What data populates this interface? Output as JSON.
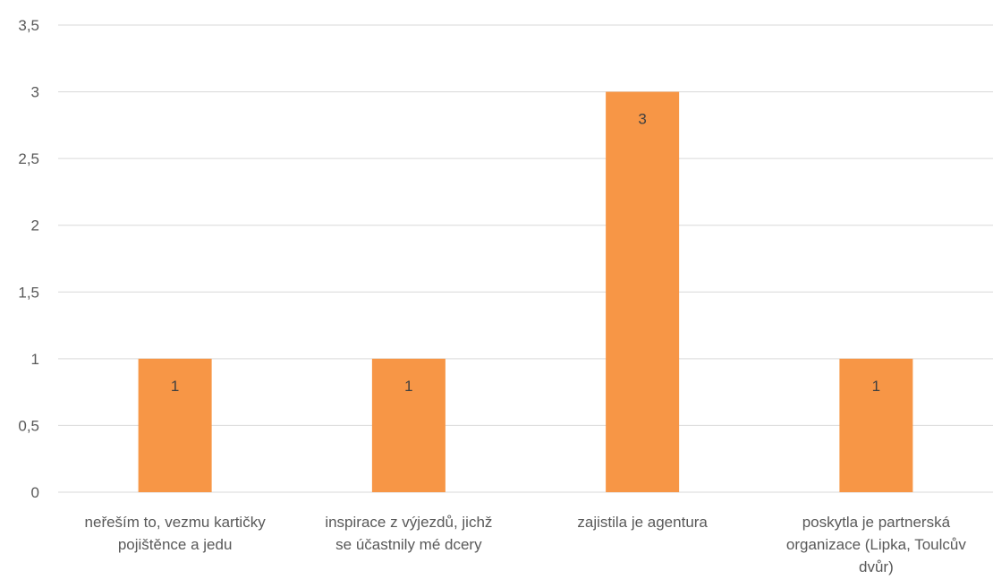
{
  "chart_data": {
    "type": "bar",
    "categories": [
      [
        "neřeším to, vezmu kartičky",
        "pojištěnce a jedu"
      ],
      [
        "inspirace z výjezdů, jichž",
        "se účastnily mé dcery"
      ],
      [
        "zajistila je agentura"
      ],
      [
        "poskytla je partnerská",
        "organizace (Lipka, Toulcův",
        "dvůr)"
      ]
    ],
    "values": [
      1,
      1,
      3,
      1
    ],
    "data_labels": [
      "1",
      "1",
      "3",
      "1"
    ],
    "ylim": [
      0,
      3.5
    ],
    "yticks": [
      "0",
      "0,5",
      "1",
      "1,5",
      "2",
      "2,5",
      "3",
      "3,5"
    ],
    "title": "",
    "xlabel": "",
    "ylabel": "",
    "grid": true,
    "legend": "none",
    "bar_color": "#F79646"
  }
}
